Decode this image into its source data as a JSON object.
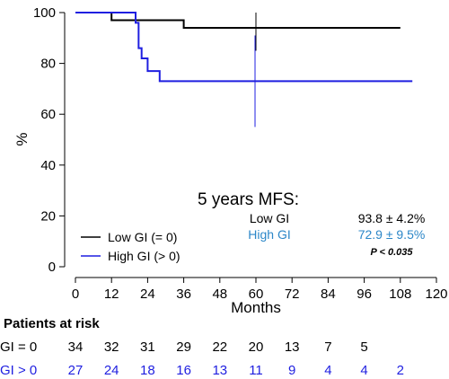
{
  "chart_data": {
    "type": "line",
    "xlabel": "Months",
    "ylabel": "%",
    "xlim": [
      0,
      120
    ],
    "ylim": [
      0,
      100
    ],
    "x_ticks": [
      0,
      12,
      24,
      36,
      48,
      60,
      72,
      84,
      96,
      108,
      120
    ],
    "y_ticks": [
      0,
      20,
      40,
      60,
      80,
      100
    ],
    "series": [
      {
        "name": "Low GI (= 0)",
        "color": "#000000",
        "steps": [
          [
            0,
            100
          ],
          [
            12,
            97
          ],
          [
            36,
            94
          ],
          [
            108,
            94
          ]
        ],
        "censor_marks": [
          [
            60,
            94
          ]
        ]
      },
      {
        "name": "High GI (> 0)",
        "color": "#1f1fe0",
        "steps": [
          [
            0,
            100
          ],
          [
            20,
            96
          ],
          [
            21,
            86
          ],
          [
            22,
            82
          ],
          [
            24,
            77
          ],
          [
            28,
            73
          ],
          [
            112,
            73
          ]
        ],
        "censor_marks": [
          [
            60,
            73
          ]
        ]
      }
    ],
    "annotation": {
      "title": "5 years MFS:",
      "rows": [
        {
          "label": "Low GI",
          "value": "93.8 ± 4.2%",
          "color": "#000000"
        },
        {
          "label": "High GI",
          "value": "72.9 ± 9.5%",
          "color": "#2c87c8"
        }
      ],
      "pvalue": "P < 0.035"
    },
    "legend_position": "bottom-left"
  },
  "risk_table": {
    "title": "Patients at risk",
    "rows": [
      {
        "label": "GI = 0",
        "color": "#000000",
        "values": [
          "34",
          "32",
          "31",
          "29",
          "22",
          "20",
          "13",
          "7",
          "5"
        ]
      },
      {
        "label": "GI > 0",
        "color": "#1f1fe0",
        "values": [
          "27",
          "24",
          "18",
          "16",
          "13",
          "11",
          "9",
          "4",
          "4",
          "2"
        ]
      }
    ]
  }
}
